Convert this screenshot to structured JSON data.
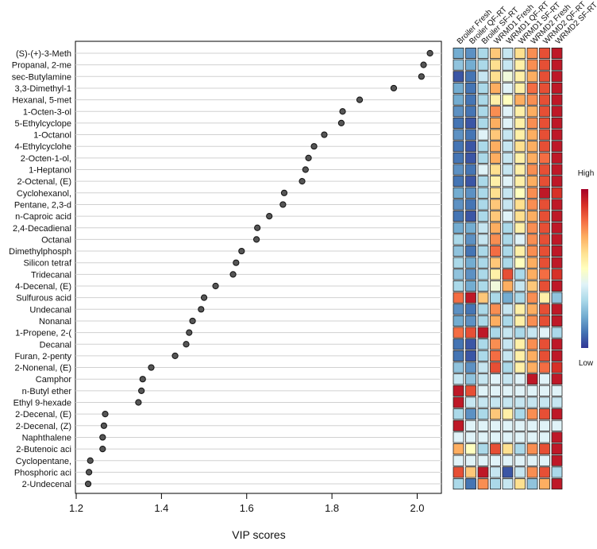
{
  "chart_data": {
    "type": "scatter",
    "subtype": "vip-dot-plot-with-heatmap",
    "xlabel": "VIP scores",
    "xlim": [
      1.2,
      2.05
    ],
    "xticks": [
      1.2,
      1.4,
      1.6,
      1.8,
      2.0
    ],
    "xtick_labels": [
      "1.2",
      "1.4",
      "1.6",
      "1.8",
      "2.0"
    ],
    "compounds": [
      "(S)-(+)-3-Meth",
      "Propanal, 2-me",
      "sec-Butylamine",
      "3,3-Dimethyl-1",
      "Hexanal, 5-met",
      "1-Octen-3-ol",
      "5-Ethylcyclope",
      "1-Octanol",
      "4-Ethylcyclohe",
      "2-Octen-1-ol,",
      "1-Heptanol",
      "2-Octenal, (E)",
      "Cyclohexanol,",
      "Pentane, 2,3-d",
      "n-Caproic acid",
      "2,4-Decadienal",
      "Octanal",
      "Dimethylphosph",
      "Silicon tetraf",
      "Tridecanal",
      "4-Decenal, (E)",
      "Sulfurous acid",
      "Undecanal",
      "Nonanal",
      "1-Propene, 2-(",
      "Decanal",
      "Furan, 2-penty",
      "2-Nonenal, (E)",
      "Camphor",
      "n-Butyl ether",
      "Ethyl 9-hexade",
      "2-Decenal, (E)",
      "2-Decenal, (Z)",
      "Naphthalene",
      "2-Butenoic aci",
      "Cyclopentane,",
      "Phosphoric aci",
      "2-Undecenal"
    ],
    "vip_scores": [
      2.03,
      2.015,
      2.01,
      1.945,
      1.865,
      1.825,
      1.822,
      1.782,
      1.758,
      1.745,
      1.738,
      1.73,
      1.688,
      1.685,
      1.653,
      1.625,
      1.623,
      1.588,
      1.575,
      1.568,
      1.527,
      1.5,
      1.493,
      1.473,
      1.465,
      1.458,
      1.432,
      1.376,
      1.356,
      1.353,
      1.346,
      1.268,
      1.265,
      1.262,
      1.262,
      1.233,
      1.23,
      1.228
    ],
    "heatmap": {
      "groups": [
        "Broiler Fresh",
        "Broiler QF-RT",
        "Broiler SF-RT",
        "WRMD1 Fresh",
        "WRMD1 QF-RT",
        "WRMD1 SF-RT",
        "WRMD2 Fresh",
        "WRMD2 QF-RT",
        "WRMD2 SF-RT"
      ],
      "legend_high": "High",
      "legend_low": "Low",
      "colormap": [
        "#313695",
        "#4575b4",
        "#74add1",
        "#abd9e9",
        "#e0f3f8",
        "#ffffbf",
        "#fee090",
        "#fdae61",
        "#f46d43",
        "#d73027",
        "#a50026"
      ],
      "values": [
        [
          0.2,
          0.15,
          0.3,
          0.65,
          0.35,
          0.6,
          0.75,
          0.85,
          0.95
        ],
        [
          0.25,
          0.2,
          0.3,
          0.6,
          0.35,
          0.55,
          0.75,
          0.85,
          0.95
        ],
        [
          0.05,
          0.1,
          0.35,
          0.6,
          0.45,
          0.55,
          0.7,
          0.85,
          0.95
        ],
        [
          0.2,
          0.1,
          0.3,
          0.7,
          0.4,
          0.55,
          0.8,
          0.85,
          0.95
        ],
        [
          0.2,
          0.1,
          0.3,
          0.55,
          0.5,
          0.7,
          0.75,
          0.85,
          0.95
        ],
        [
          0.15,
          0.1,
          0.3,
          0.75,
          0.4,
          0.55,
          0.7,
          0.85,
          0.95
        ],
        [
          0.1,
          0.05,
          0.3,
          0.7,
          0.4,
          0.55,
          0.75,
          0.85,
          0.95
        ],
        [
          0.15,
          0.1,
          0.4,
          0.65,
          0.35,
          0.55,
          0.7,
          0.85,
          0.95
        ],
        [
          0.1,
          0.05,
          0.3,
          0.7,
          0.35,
          0.6,
          0.7,
          0.85,
          0.95
        ],
        [
          0.1,
          0.05,
          0.3,
          0.7,
          0.35,
          0.55,
          0.7,
          0.8,
          0.95
        ],
        [
          0.15,
          0.1,
          0.4,
          0.6,
          0.35,
          0.55,
          0.75,
          0.85,
          0.95
        ],
        [
          0.1,
          0.05,
          0.3,
          0.55,
          0.4,
          0.55,
          0.7,
          0.85,
          0.95
        ],
        [
          0.2,
          0.15,
          0.3,
          0.6,
          0.35,
          0.5,
          0.75,
          0.95,
          0.9
        ],
        [
          0.15,
          0.1,
          0.3,
          0.65,
          0.35,
          0.6,
          0.75,
          0.85,
          0.95
        ],
        [
          0.1,
          0.05,
          0.3,
          0.65,
          0.4,
          0.6,
          0.7,
          0.85,
          0.95
        ],
        [
          0.2,
          0.2,
          0.35,
          0.7,
          0.3,
          0.55,
          0.75,
          0.85,
          0.95
        ],
        [
          0.3,
          0.15,
          0.35,
          0.75,
          0.3,
          0.4,
          0.75,
          0.85,
          0.95
        ],
        [
          0.25,
          0.1,
          0.3,
          0.8,
          0.3,
          0.55,
          0.75,
          0.85,
          0.95
        ],
        [
          0.3,
          0.2,
          0.3,
          0.65,
          0.3,
          0.5,
          0.7,
          0.85,
          0.95
        ],
        [
          0.25,
          0.15,
          0.3,
          0.55,
          0.85,
          0.3,
          0.7,
          0.8,
          0.9
        ],
        [
          0.3,
          0.2,
          0.3,
          0.45,
          0.7,
          0.35,
          0.65,
          0.85,
          0.95
        ],
        [
          0.8,
          0.95,
          0.65,
          0.3,
          0.2,
          0.3,
          0.75,
          0.55,
          0.25
        ],
        [
          0.15,
          0.1,
          0.3,
          0.75,
          0.35,
          0.55,
          0.7,
          0.85,
          0.95
        ],
        [
          0.2,
          0.15,
          0.3,
          0.7,
          0.3,
          0.55,
          0.75,
          0.85,
          0.95
        ],
        [
          0.8,
          0.85,
          0.95,
          0.3,
          0.35,
          0.3,
          0.35,
          0.4,
          0.3
        ],
        [
          0.1,
          0.05,
          0.3,
          0.75,
          0.35,
          0.55,
          0.75,
          0.85,
          0.95
        ],
        [
          0.1,
          0.05,
          0.3,
          0.8,
          0.35,
          0.55,
          0.7,
          0.85,
          0.95
        ],
        [
          0.25,
          0.15,
          0.35,
          0.85,
          0.3,
          0.55,
          0.7,
          0.8,
          0.9
        ],
        [
          0.35,
          0.25,
          0.35,
          0.4,
          0.35,
          0.4,
          0.95,
          0.4,
          0.95
        ],
        [
          0.95,
          0.85,
          0.4,
          0.4,
          0.4,
          0.4,
          0.4,
          0.4,
          0.4
        ],
        [
          0.95,
          0.35,
          0.35,
          0.35,
          0.35,
          0.35,
          0.35,
          0.35,
          0.35
        ],
        [
          0.3,
          0.15,
          0.3,
          0.65,
          0.55,
          0.3,
          0.75,
          0.85,
          0.95
        ],
        [
          0.95,
          0.4,
          0.4,
          0.4,
          0.4,
          0.4,
          0.4,
          0.4,
          0.4
        ],
        [
          0.4,
          0.4,
          0.4,
          0.4,
          0.4,
          0.4,
          0.4,
          0.4,
          0.95
        ],
        [
          0.7,
          0.5,
          0.3,
          0.85,
          0.6,
          0.3,
          0.75,
          0.85,
          0.95
        ],
        [
          0.4,
          0.4,
          0.4,
          0.4,
          0.4,
          0.4,
          0.4,
          0.4,
          0.95
        ],
        [
          0.85,
          0.65,
          0.95,
          0.35,
          0.05,
          0.35,
          0.75,
          0.85,
          0.3
        ],
        [
          0.3,
          0.1,
          0.75,
          0.3,
          0.35,
          0.6,
          0.25,
          0.7,
          0.95
        ]
      ]
    }
  }
}
